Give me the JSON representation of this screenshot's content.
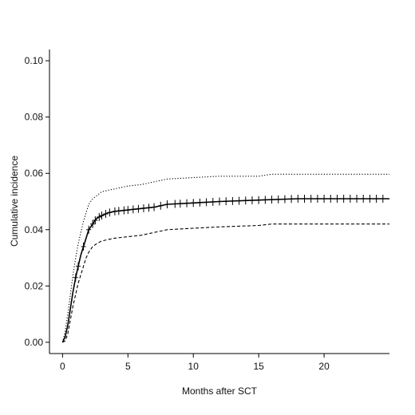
{
  "chart_data": {
    "type": "line",
    "title": "",
    "xlabel": "Months after SCT",
    "ylabel": "Cumulative incidence",
    "xlim": [
      -1,
      25
    ],
    "ylim": [
      -0.004,
      0.104
    ],
    "xticks": [
      0,
      5,
      10,
      15,
      20
    ],
    "yticks": [
      0.0,
      0.02,
      0.04,
      0.06,
      0.08,
      0.1
    ],
    "ytick_labels": [
      "0.00",
      "0.02",
      "0.04",
      "0.06",
      "0.08",
      "0.10"
    ],
    "grid": false,
    "legend": "none",
    "series": [
      {
        "style": "solid",
        "censor_marks": true,
        "x": [
          0,
          0.2,
          0.4,
          0.6,
          0.8,
          1.0,
          1.2,
          1.4,
          1.6,
          1.8,
          2.0,
          2.3,
          2.6,
          3.0,
          3.5,
          4.0,
          5.0,
          6.0,
          7.0,
          8.0,
          10.0,
          12.0,
          15.0,
          18.0,
          20.0,
          25.0
        ],
        "y": [
          0,
          0.002,
          0.006,
          0.012,
          0.018,
          0.023,
          0.027,
          0.031,
          0.034,
          0.037,
          0.04,
          0.042,
          0.044,
          0.045,
          0.046,
          0.0465,
          0.047,
          0.0475,
          0.048,
          0.049,
          0.0495,
          0.05,
          0.0505,
          0.051,
          0.051,
          0.051
        ]
      },
      {
        "style": "dotted",
        "x": [
          0,
          0.2,
          0.4,
          0.6,
          0.8,
          1.0,
          1.2,
          1.4,
          1.6,
          1.8,
          2.0,
          2.3,
          2.6,
          3.0,
          3.5,
          4.0,
          5.0,
          6.0,
          7.0,
          8.0,
          10.0,
          12.0,
          15.0,
          16.0,
          20.0,
          25.0
        ],
        "y": [
          0,
          0.004,
          0.01,
          0.017,
          0.024,
          0.03,
          0.035,
          0.039,
          0.043,
          0.046,
          0.049,
          0.051,
          0.052,
          0.0535,
          0.054,
          0.0545,
          0.0555,
          0.056,
          0.057,
          0.058,
          0.0585,
          0.059,
          0.059,
          0.0597,
          0.0597,
          0.0597
        ]
      },
      {
        "style": "dashed",
        "x": [
          0,
          0.2,
          0.4,
          0.6,
          0.8,
          1.0,
          1.2,
          1.4,
          1.6,
          1.8,
          2.0,
          2.3,
          2.6,
          3.0,
          3.5,
          4.0,
          5.0,
          6.0,
          7.0,
          8.0,
          10.0,
          12.0,
          15.0,
          16.0,
          20.0,
          25.0
        ],
        "y": [
          0,
          0.0005,
          0.003,
          0.008,
          0.013,
          0.017,
          0.021,
          0.024,
          0.027,
          0.03,
          0.032,
          0.034,
          0.035,
          0.036,
          0.0365,
          0.037,
          0.0375,
          0.038,
          0.039,
          0.04,
          0.0405,
          0.041,
          0.0415,
          0.042,
          0.042,
          0.042
        ]
      }
    ],
    "censor_x": [
      1.0,
      1.2,
      1.6,
      2.0,
      2.3,
      2.5,
      2.8,
      3.0,
      3.3,
      3.6,
      4.0,
      4.3,
      4.7,
      5.0,
      5.4,
      5.8,
      6.2,
      6.6,
      7.0,
      7.5,
      8.0,
      8.6,
      9.0,
      9.5,
      10.0,
      10.5,
      11.0,
      11.5,
      12.0,
      12.5,
      13.0,
      13.5,
      14.0,
      14.5,
      15.0,
      15.5,
      16.0,
      16.5,
      17.0,
      17.5,
      18.0,
      18.5,
      19.0,
      19.5,
      20.0,
      20.5,
      21.0,
      21.5,
      22.0,
      22.5,
      23.0,
      23.5,
      24.0,
      24.5
    ]
  }
}
